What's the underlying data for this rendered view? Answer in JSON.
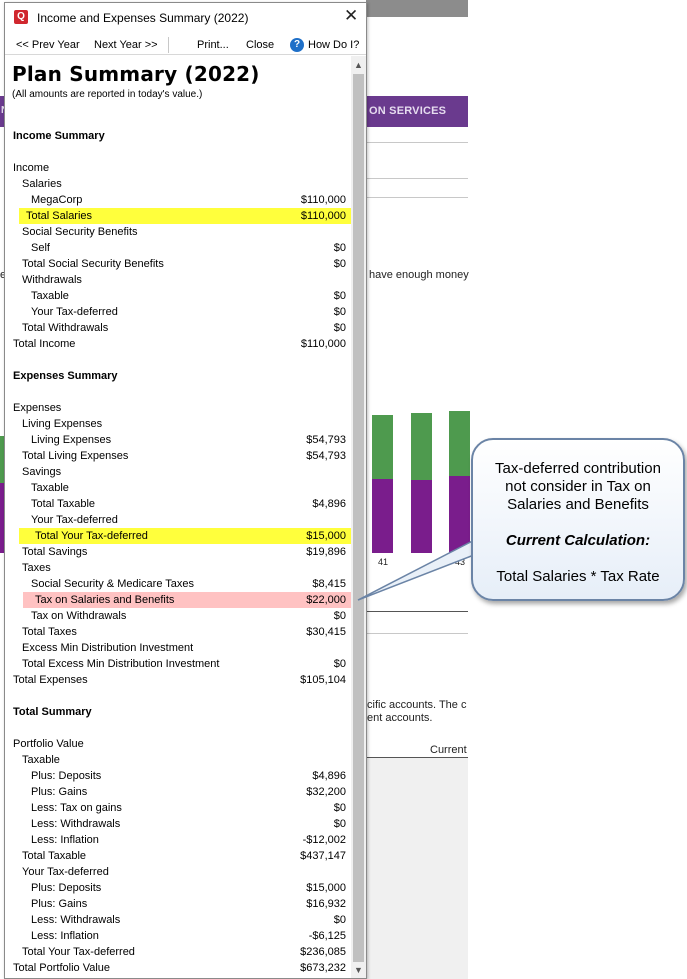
{
  "window": {
    "title": "Income and Expenses Summary (2022)",
    "close_glyph": "✕"
  },
  "toolbar": {
    "prev_year": "<< Prev Year",
    "next_year": "Next Year >>",
    "print": "Print...",
    "close": "Close",
    "help": "How Do I?",
    "help_icon": "?"
  },
  "report": {
    "title": "Plan Summary (2022)",
    "subtitle": "(All amounts are reported in today's value.)"
  },
  "rows": [
    {
      "label": "Income Summary",
      "value": "",
      "indent": 0,
      "kind": "sec"
    },
    {
      "label": "Income",
      "value": "",
      "indent": 0
    },
    {
      "label": "Salaries",
      "value": "",
      "indent": 1
    },
    {
      "label": "MegaCorp",
      "value": "$110,000",
      "indent": 2
    },
    {
      "label": "Total Salaries",
      "value": "$110,000",
      "indent": 1,
      "highlight": "yellow"
    },
    {
      "label": "Social Security Benefits",
      "value": "",
      "indent": 1
    },
    {
      "label": "Self",
      "value": "$0",
      "indent": 2
    },
    {
      "label": "Total Social Security Benefits",
      "value": "$0",
      "indent": 1
    },
    {
      "label": "Withdrawals",
      "value": "",
      "indent": 1
    },
    {
      "label": "Taxable",
      "value": "$0",
      "indent": 2
    },
    {
      "label": "Your Tax-deferred",
      "value": "$0",
      "indent": 2
    },
    {
      "label": "Total Withdrawals",
      "value": "$0",
      "indent": 1
    },
    {
      "label": "Total Income",
      "value": "$110,000",
      "indent": 0
    },
    {
      "label": "Expenses Summary",
      "value": "",
      "indent": 0,
      "kind": "sec"
    },
    {
      "label": "Expenses",
      "value": "",
      "indent": 0
    },
    {
      "label": "Living Expenses",
      "value": "",
      "indent": 1
    },
    {
      "label": "Living Expenses",
      "value": "$54,793",
      "indent": 2
    },
    {
      "label": "Total Living Expenses",
      "value": "$54,793",
      "indent": 1
    },
    {
      "label": "Savings",
      "value": "",
      "indent": 1
    },
    {
      "label": "Taxable",
      "value": "",
      "indent": 2
    },
    {
      "label": "Total Taxable",
      "value": "$4,896",
      "indent": 2
    },
    {
      "label": "Your Tax-deferred",
      "value": "",
      "indent": 2
    },
    {
      "label": "Total Your Tax-deferred",
      "value": "$15,000",
      "indent": 2,
      "highlight": "yellow"
    },
    {
      "label": "Total Savings",
      "value": "$19,896",
      "indent": 1
    },
    {
      "label": "Taxes",
      "value": "",
      "indent": 1
    },
    {
      "label": "Social Security & Medicare Taxes",
      "value": "$8,415",
      "indent": 2
    },
    {
      "label": "Tax on Salaries and Benefits",
      "value": "$22,000",
      "indent": 2,
      "highlight": "red"
    },
    {
      "label": "Tax on Withdrawals",
      "value": "$0",
      "indent": 2
    },
    {
      "label": "Total Taxes",
      "value": "$30,415",
      "indent": 1
    },
    {
      "label": "Excess Min Distribution Investment",
      "value": "",
      "indent": 1
    },
    {
      "label": "Total Excess Min Distribution Investment",
      "value": "$0",
      "indent": 1
    },
    {
      "label": "Total Expenses",
      "value": "$105,104",
      "indent": 0
    },
    {
      "label": "Total Summary",
      "value": "",
      "indent": 0,
      "kind": "sec"
    },
    {
      "label": "Portfolio Value",
      "value": "",
      "indent": 0
    },
    {
      "label": "Taxable",
      "value": "",
      "indent": 1
    },
    {
      "label": "Plus: Deposits",
      "value": "$4,896",
      "indent": 2
    },
    {
      "label": "Plus: Gains",
      "value": "$32,200",
      "indent": 2
    },
    {
      "label": "Less: Tax on gains",
      "value": "$0",
      "indent": 2
    },
    {
      "label": "Less: Withdrawals",
      "value": "$0",
      "indent": 2
    },
    {
      "label": "Less: Inflation",
      "value": "-$12,002",
      "indent": 2
    },
    {
      "label": "Total Taxable",
      "value": "$437,147",
      "indent": 1
    },
    {
      "label": "Your Tax-deferred",
      "value": "",
      "indent": 1
    },
    {
      "label": "Plus: Deposits",
      "value": "$15,000",
      "indent": 2
    },
    {
      "label": "Plus: Gains",
      "value": "$16,932",
      "indent": 2
    },
    {
      "label": "Less: Withdrawals",
      "value": "$0",
      "indent": 2
    },
    {
      "label": "Less: Inflation",
      "value": "-$6,125",
      "indent": 2
    },
    {
      "label": "Total Your Tax-deferred",
      "value": "$236,085",
      "indent": 1
    },
    {
      "label": "Total Portfolio Value",
      "value": "$673,232",
      "indent": 0
    }
  ],
  "background": {
    "menu_text": "ON SERVICES",
    "left_letter": "N",
    "money_text": "have enough money",
    "money_left": "e)",
    "accounts_line1": "cific accounts. The c",
    "accounts_line2": "ent accounts.",
    "current_header": "Current",
    "axis_labels": [
      "41",
      "43"
    ]
  },
  "callout": {
    "line1": "Tax-deferred contribution",
    "line2": "not consider in Tax on",
    "line3": "Salaries and Benefits",
    "emphasis": "Current Calculation:",
    "formula": "Total Salaries * Tax Rate"
  },
  "colors": {
    "highlight_yellow": "#ffff3c",
    "highlight_red": "#ffc2c2",
    "menu_purple": "#6a3a8e",
    "bar_green": "#4e9a4e",
    "bar_purple": "#7a1d8c",
    "callout_border": "#6b84a6"
  }
}
